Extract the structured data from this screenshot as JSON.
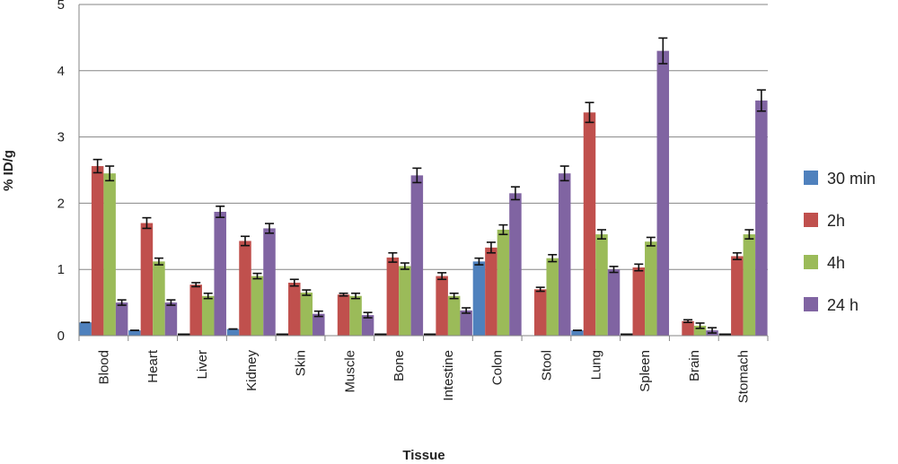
{
  "chart_data": {
    "type": "bar",
    "title": "",
    "xlabel": "Tissue",
    "ylabel": "% ID/g",
    "ylim": [
      0,
      5
    ],
    "yticks": [
      "0",
      "1",
      "2",
      "3",
      "4",
      "5"
    ],
    "grid": true,
    "legend_position": "right",
    "categories": [
      "Blood",
      "Heart",
      "Liver",
      "Kidney",
      "Skin",
      "Muscle",
      "Bone",
      "Intestine",
      "Colon",
      "Stool",
      "Lung",
      "Spleen",
      "Brain",
      "Stomach"
    ],
    "series": [
      {
        "name": "30 min",
        "color": "#4f81bd",
        "values": [
          0.2,
          0.08,
          0.02,
          0.1,
          0.02,
          0,
          0.02,
          0.02,
          1.12,
          0,
          0.08,
          0.02,
          0,
          0.02
        ],
        "errors": [
          0,
          0,
          0,
          0,
          0,
          0,
          0,
          0,
          0.05,
          0,
          0,
          0,
          0,
          0
        ]
      },
      {
        "name": "2h",
        "color": "#c0504d",
        "values": [
          2.56,
          1.7,
          0.77,
          1.43,
          0.8,
          0.62,
          1.18,
          0.9,
          1.33,
          0.7,
          3.37,
          1.03,
          0.22,
          1.2
        ],
        "errors": [
          0.1,
          0.08,
          0.03,
          0.07,
          0.05,
          0.02,
          0.07,
          0.05,
          0.08,
          0.03,
          0.15,
          0.05,
          0.02,
          0.05
        ]
      },
      {
        "name": "4h",
        "color": "#9bbb59",
        "values": [
          2.45,
          1.12,
          0.6,
          0.9,
          0.65,
          0.6,
          1.05,
          0.6,
          1.6,
          1.17,
          1.53,
          1.42,
          0.15,
          1.53
        ]
      },
      {
        "name": "24 h",
        "color": "#8064a2",
        "values": [
          0.5,
          0.5,
          1.87,
          1.62,
          0.33,
          0.31,
          2.42,
          0.38,
          2.15,
          2.45,
          1.0,
          4.3,
          0.08,
          3.55
        ]
      }
    ]
  }
}
